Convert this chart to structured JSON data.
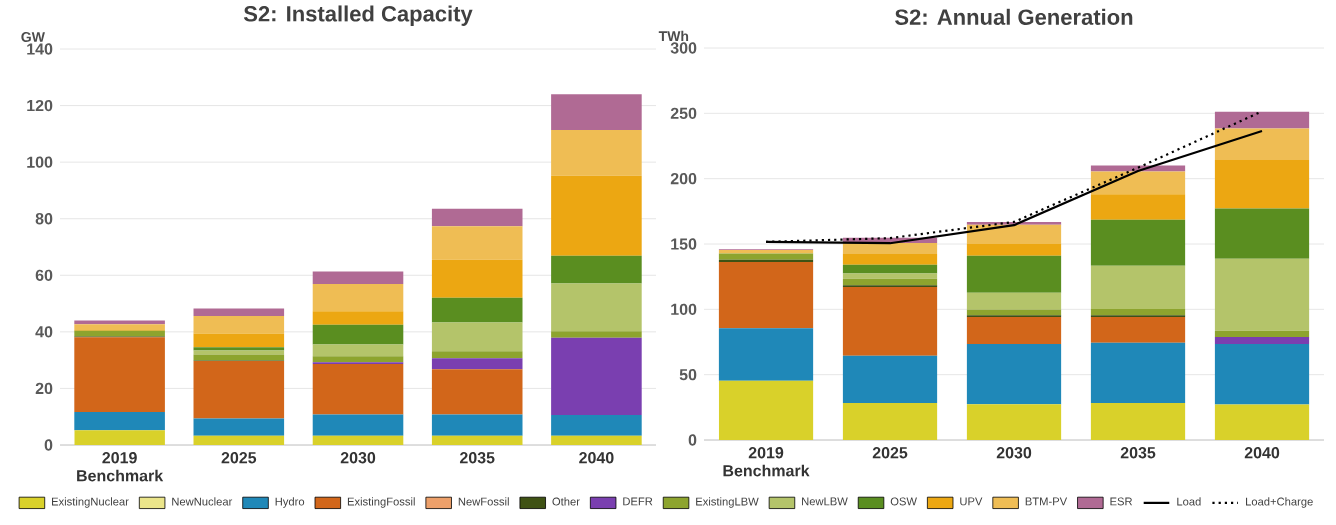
{
  "chart_data": [
    {
      "type": "bar",
      "stacked": true,
      "title": "S2: Installed Capacity",
      "ylabel": "GW",
      "categories": [
        "2019 Benchmark",
        "2025",
        "2030",
        "2035",
        "2040"
      ],
      "ylim": [
        0,
        140
      ],
      "yticks": [
        0,
        20,
        40,
        60,
        80,
        100,
        120,
        140
      ],
      "grid": "y",
      "series": [
        {
          "color": "#d9d12a",
          "values": [
            5.2,
            3.3,
            3.3,
            3.3,
            3.3
          ]
        },
        {
          "color": "#ebe58a",
          "values": [
            0,
            0,
            0,
            0,
            0
          ]
        },
        {
          "color": "#1f88b8",
          "values": [
            6.5,
            6.1,
            7.5,
            7.5,
            7.3
          ]
        },
        {
          "color": "#d2661a",
          "values": [
            26.4,
            20.3,
            17.8,
            16.0,
            0
          ]
        },
        {
          "color": "#eda06a",
          "values": [
            0,
            0,
            0,
            0,
            0
          ]
        },
        {
          "color": "#3f5214",
          "values": [
            0.3,
            0.2,
            null,
            null,
            0
          ]
        },
        {
          "color": "#7a3fb0",
          "values": [
            0,
            0,
            0.7,
            3.9,
            27.3
          ]
        },
        {
          "color": "#8da42e",
          "values": [
            2.0,
            2.1,
            2.1,
            2.4,
            2.3
          ]
        },
        {
          "color": "#b4c46a",
          "values": [
            0,
            1.4,
            4.1,
            10.2,
            16.9
          ]
        },
        {
          "color": "#5a8e20",
          "values": [
            0,
            1.2,
            7.0,
            8.8,
            9.8
          ]
        },
        {
          "color": "#eca712",
          "values": [
            0.3,
            4.8,
            4.8,
            13.4,
            28.3
          ]
        },
        {
          "color": "#efbd54",
          "values": [
            2.0,
            6.2,
            9.6,
            11.8,
            16.2
          ]
        },
        {
          "color": "#b06a94",
          "values": [
            1.3,
            2.7,
            4.4,
            6.2,
            12.6
          ]
        }
      ]
    },
    {
      "type": "bar",
      "stacked": true,
      "title": "S2: Annual Generation",
      "ylabel": "TWh",
      "categories": [
        "2019 Benchmark",
        "2025",
        "2030",
        "2035",
        "2040"
      ],
      "ylim": [
        0,
        300
      ],
      "yticks": [
        0,
        50,
        100,
        150,
        200,
        250,
        300
      ],
      "grid": "y",
      "legend": "bottom",
      "series": [
        {
          "name": "ExistingNuclear",
          "color": "#d9d12a",
          "values": [
            45.3,
            28.4,
            27.4,
            28.4,
            27.1
          ]
        },
        {
          "name": "NewNuclear",
          "color": "#ebe58a",
          "values": [
            0,
            0,
            0,
            0,
            0
          ]
        },
        {
          "name": "Hydro",
          "color": "#1f88b8",
          "values": [
            40.2,
            36.1,
            46.0,
            46.0,
            46.3
          ]
        },
        {
          "name": "ExistingFossil",
          "color": "#d2661a",
          "values": [
            50.8,
            52.6,
            20.8,
            19.8,
            0
          ]
        },
        {
          "name": "NewFossil",
          "color": "#eda06a",
          "values": [
            0,
            0,
            0,
            0,
            0
          ]
        },
        {
          "name": "Other",
          "color": "#3f5214",
          "values": [
            1.6,
            1.3,
            1.2,
            1.2,
            0
          ]
        },
        {
          "name": "DEFR",
          "color": "#7a3fb0",
          "values": [
            0,
            0,
            0,
            0,
            5.4
          ]
        },
        {
          "name": "ExistingLBW",
          "color": "#8da42e",
          "values": [
            4.8,
            5.1,
            4.5,
            4.8,
            4.8
          ]
        },
        {
          "name": "NewLBW",
          "color": "#b4c46a",
          "values": [
            0,
            3.9,
            12.8,
            33.2,
            55.2
          ]
        },
        {
          "name": "OSW",
          "color": "#5a8e20",
          "values": [
            0,
            6.7,
            28.4,
            35.1,
            38.3
          ]
        },
        {
          "name": "UPV",
          "color": "#eca712",
          "values": [
            0,
            8.3,
            8.9,
            19.5,
            37.1
          ]
        },
        {
          "name": "BTM-PV",
          "color": "#efbd54",
          "values": [
            2.7,
            8.3,
            14.7,
            17.5,
            24.2
          ]
        },
        {
          "name": "ESR",
          "color": "#b06a94",
          "values": [
            0.5,
            4.1,
            2.2,
            4.5,
            12.8
          ]
        },
        {
          "name": "Load",
          "type": "line",
          "color": "#000000",
          "line_style": "solid",
          "marker": "none",
          "values": [
            151.6,
            150.6,
            164.4,
            205.9,
            236.5
          ]
        },
        {
          "name": "Load+Charge",
          "type": "line",
          "color": "#000000",
          "line_style": "dotted",
          "marker": "none",
          "values": [
            151.6,
            154.5,
            166.9,
            208.4,
            251.5
          ]
        }
      ]
    }
  ]
}
